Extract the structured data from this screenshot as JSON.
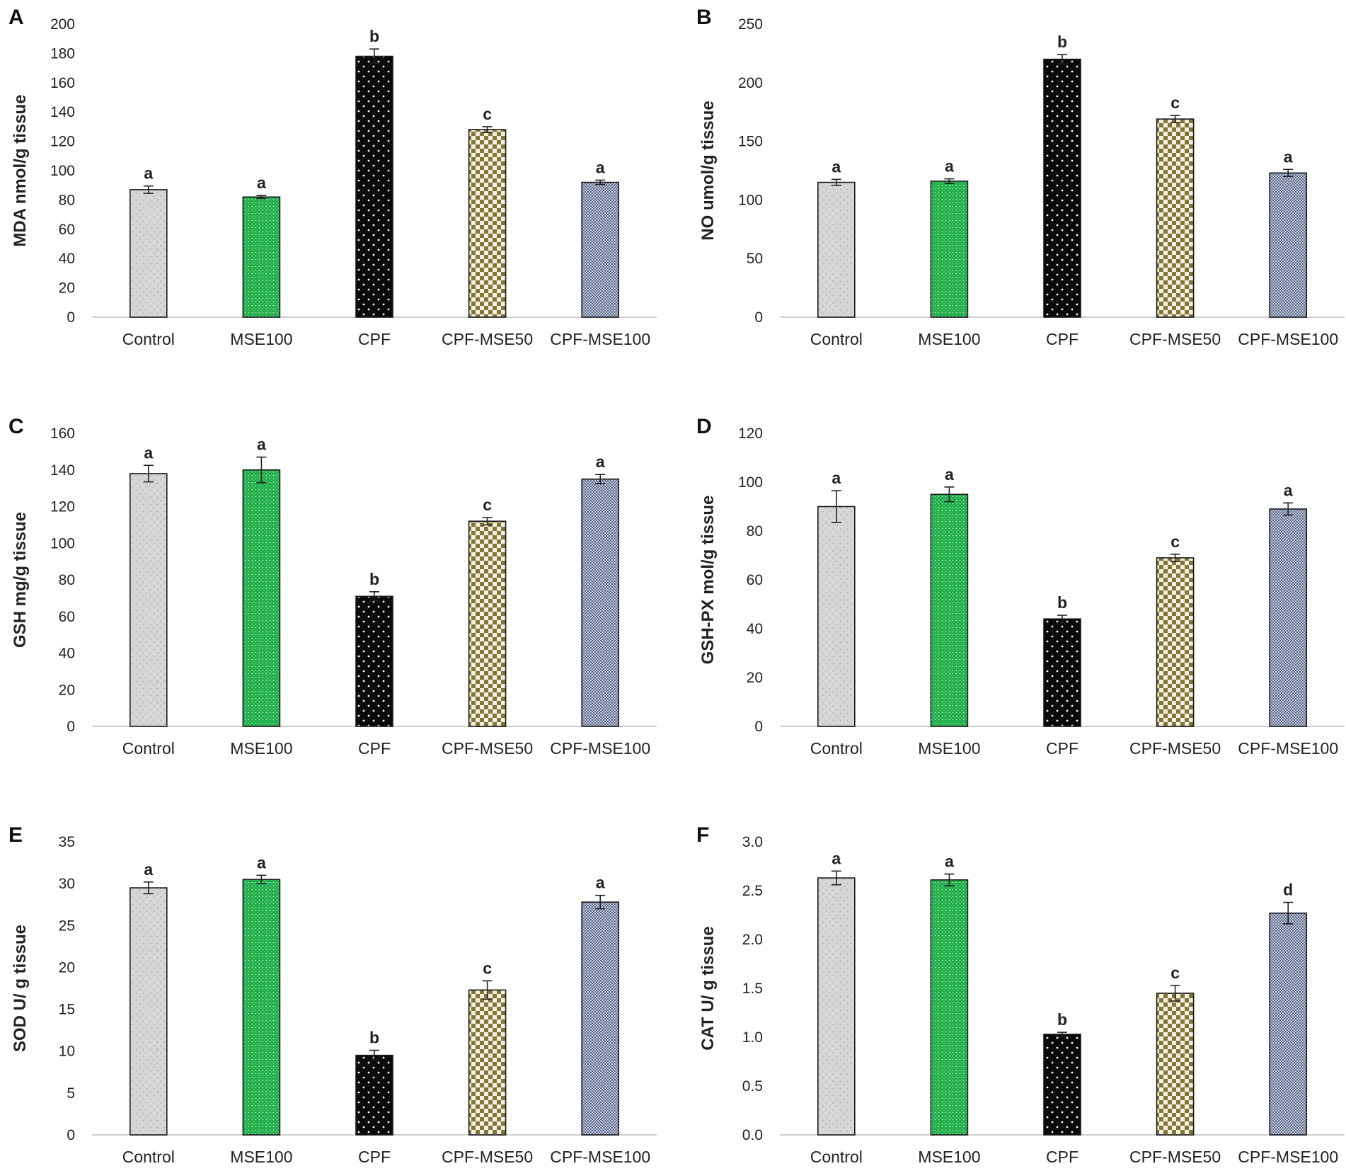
{
  "figure": {
    "categories": [
      "Control",
      "MSE100",
      "CPF",
      "CPF-MSE50",
      "CPF-MSE100"
    ],
    "series_colors": {
      "Control": "#d4d4d4",
      "MSE100": "#22b14c",
      "CPF": "#0a0a0a",
      "CPF-MSE50": "#8a7c3c",
      "CPF-MSE100": "#6d7a9a"
    }
  },
  "chart_data": [
    {
      "panel": "A",
      "type": "bar",
      "ylabel": "MDA nmol/g tissue",
      "ylim": [
        0,
        200
      ],
      "yticks": [
        0,
        20,
        40,
        60,
        80,
        100,
        120,
        140,
        160,
        180,
        200
      ],
      "tick_labels": [
        "0",
        "20",
        "40",
        "60",
        "80",
        "100",
        "120",
        "140",
        "160",
        "180",
        "200"
      ],
      "categories": [
        "Control",
        "MSE100",
        "CPF",
        "CPF-MSE50",
        "CPF-MSE100"
      ],
      "values": [
        87,
        82,
        178,
        128,
        92
      ],
      "errors": [
        2.5,
        1,
        5,
        2,
        1.5
      ],
      "significance": [
        "a",
        "a",
        "b",
        "c",
        "a"
      ]
    },
    {
      "panel": "B",
      "type": "bar",
      "ylabel": "NO umol/g tissue",
      "ylim": [
        0,
        250
      ],
      "yticks": [
        0,
        50,
        100,
        150,
        200,
        250
      ],
      "tick_labels": [
        "0",
        "50",
        "100",
        "150",
        "200",
        "250"
      ],
      "categories": [
        "Control",
        "MSE100",
        "CPF",
        "CPF-MSE50",
        "CPF-MSE100"
      ],
      "values": [
        115,
        116,
        220,
        169,
        123
      ],
      "errors": [
        2.5,
        2,
        4,
        3,
        3
      ],
      "significance": [
        "a",
        "a",
        "b",
        "c",
        "a"
      ]
    },
    {
      "panel": "C",
      "type": "bar",
      "ylabel": "GSH mg/g tissue",
      "ylim": [
        0,
        160
      ],
      "yticks": [
        0,
        20,
        40,
        60,
        80,
        100,
        120,
        140,
        160
      ],
      "tick_labels": [
        "0",
        "20",
        "40",
        "60",
        "80",
        "100",
        "120",
        "140",
        "160"
      ],
      "categories": [
        "Control",
        "MSE100",
        "CPF",
        "CPF-MSE50",
        "CPF-MSE100"
      ],
      "values": [
        138,
        140,
        71,
        112,
        135
      ],
      "errors": [
        4.5,
        7,
        2.5,
        2,
        2.5
      ],
      "significance": [
        "a",
        "a",
        "b",
        "c",
        "a"
      ]
    },
    {
      "panel": "D",
      "type": "bar",
      "ylabel": "GSH-PX mol/g tissue",
      "ylim": [
        0,
        120
      ],
      "yticks": [
        0,
        20,
        40,
        60,
        80,
        100,
        120
      ],
      "tick_labels": [
        "0",
        "20",
        "40",
        "60",
        "80",
        "100",
        "120"
      ],
      "categories": [
        "Control",
        "MSE100",
        "CPF",
        "CPF-MSE50",
        "CPF-MSE100"
      ],
      "values": [
        90,
        95,
        44,
        69,
        89
      ],
      "errors": [
        6.5,
        3,
        1.5,
        1.5,
        2.5
      ],
      "significance": [
        "a",
        "a",
        "b",
        "c",
        "a"
      ]
    },
    {
      "panel": "E",
      "type": "bar",
      "ylabel": "SOD U/ g tissue",
      "ylim": [
        0,
        35
      ],
      "yticks": [
        0,
        5,
        10,
        15,
        20,
        25,
        30,
        35
      ],
      "tick_labels": [
        "0",
        "5",
        "10",
        "15",
        "20",
        "25",
        "30",
        "35"
      ],
      "categories": [
        "Control",
        "MSE100",
        "CPF",
        "CPF-MSE50",
        "CPF-MSE100"
      ],
      "values": [
        29.5,
        30.5,
        9.5,
        17.3,
        27.8
      ],
      "errors": [
        0.7,
        0.5,
        0.6,
        1.1,
        0.8
      ],
      "significance": [
        "a",
        "a",
        "b",
        "c",
        "a"
      ]
    },
    {
      "panel": "F",
      "type": "bar",
      "ylabel": "CAT U/ g tissue",
      "ylim": [
        0,
        3
      ],
      "yticks": [
        0,
        0.5,
        1,
        1.5,
        2,
        2.5,
        3
      ],
      "tick_labels": [
        "0.0",
        "0.5",
        "1.0",
        "1.5",
        "2.0",
        "2.5",
        "3.0"
      ],
      "categories": [
        "Control",
        "MSE100",
        "CPF",
        "CPF-MSE50",
        "CPF-MSE100"
      ],
      "values": [
        2.63,
        2.61,
        1.03,
        1.45,
        2.27
      ],
      "errors": [
        0.07,
        0.06,
        0.02,
        0.08,
        0.11
      ],
      "significance": [
        "a",
        "a",
        "b",
        "c",
        "d"
      ]
    }
  ]
}
